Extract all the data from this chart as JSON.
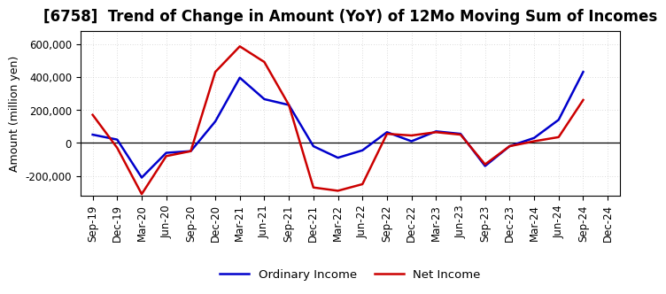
{
  "title": "[6758]  Trend of Change in Amount (YoY) of 12Mo Moving Sum of Incomes",
  "ylabel": "Amount (million yen)",
  "x_labels": [
    "Sep-19",
    "Dec-19",
    "Mar-20",
    "Jun-20",
    "Sep-20",
    "Dec-20",
    "Mar-21",
    "Jun-21",
    "Sep-21",
    "Dec-21",
    "Mar-22",
    "Jun-22",
    "Sep-22",
    "Dec-22",
    "Mar-23",
    "Jun-23",
    "Sep-23",
    "Dec-23",
    "Mar-24",
    "Jun-24",
    "Sep-24",
    "Dec-24"
  ],
  "ordinary_income": [
    50000,
    20000,
    -210000,
    -60000,
    -50000,
    130000,
    395000,
    265000,
    230000,
    -20000,
    -90000,
    -45000,
    65000,
    10000,
    70000,
    55000,
    -140000,
    -20000,
    30000,
    140000,
    430000,
    null
  ],
  "net_income": [
    170000,
    -30000,
    -310000,
    -80000,
    -50000,
    430000,
    585000,
    490000,
    230000,
    -270000,
    -290000,
    -250000,
    55000,
    45000,
    65000,
    50000,
    -130000,
    -20000,
    10000,
    35000,
    260000,
    null
  ],
  "ordinary_income_color": "#0000cc",
  "net_income_color": "#cc0000",
  "background_color": "#ffffff",
  "grid_color": "#bbbbbb",
  "ylim": [
    -320000,
    680000
  ],
  "yticks": [
    -200000,
    0,
    200000,
    400000,
    600000
  ],
  "legend_labels": [
    "Ordinary Income",
    "Net Income"
  ],
  "line_width": 1.8,
  "title_fontsize": 12,
  "axis_fontsize": 9,
  "tick_fontsize": 8.5
}
